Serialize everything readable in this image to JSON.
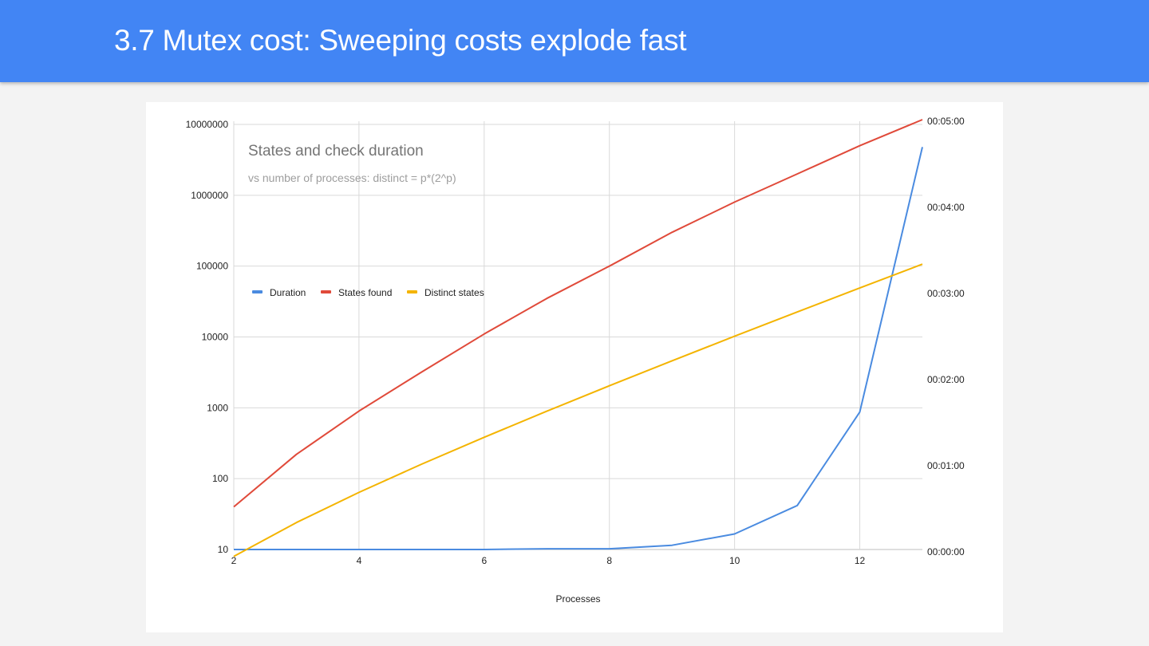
{
  "slide": {
    "title": "3.7 Mutex cost: Sweeping costs explode fast"
  },
  "colors": {
    "header_bg": "#4285f4",
    "duration": "#4a8be0",
    "states_found": "#e04a3a",
    "distinct_states": "#f4b400"
  },
  "chart_data": {
    "type": "line",
    "title": "States and check duration",
    "subtitle": "vs number of processes: distinct = p*(2^p)",
    "xlabel": "Processes",
    "ylabel": "",
    "x": [
      2,
      3,
      4,
      5,
      6,
      7,
      8,
      9,
      10,
      11,
      12,
      13
    ],
    "x_ticks": [
      "2",
      "4",
      "6",
      "8",
      "10",
      "12"
    ],
    "x_range": [
      2,
      13
    ],
    "y_left": {
      "scale": "log",
      "range": [
        10,
        10000000
      ],
      "ticks": [
        "10000000",
        "1000000",
        "100000",
        "10000",
        "1000",
        "100",
        "10"
      ]
    },
    "y_right": {
      "range_seconds": [
        0,
        300
      ],
      "ticks": [
        "00:05:00",
        "00:04:00",
        "00:03:00",
        "00:02:00",
        "00:01:00",
        "00:00:00"
      ]
    },
    "legend_position": "upper-left",
    "series": [
      {
        "name": "Duration",
        "axis": "right",
        "unit": "seconds",
        "values": [
          0,
          0,
          0,
          0,
          0,
          0.5,
          0.5,
          3,
          11,
          31,
          97,
          284
        ]
      },
      {
        "name": "States found",
        "axis": "left",
        "values": [
          40,
          220,
          900,
          3200,
          11000,
          35000,
          100000,
          300000,
          800000,
          2000000,
          5000000,
          12000000
        ]
      },
      {
        "name": "Distinct states",
        "axis": "left",
        "values": [
          8,
          24,
          64,
          160,
          384,
          896,
          2048,
          4608,
          10240,
          22528,
          49152,
          106496
        ]
      }
    ]
  }
}
